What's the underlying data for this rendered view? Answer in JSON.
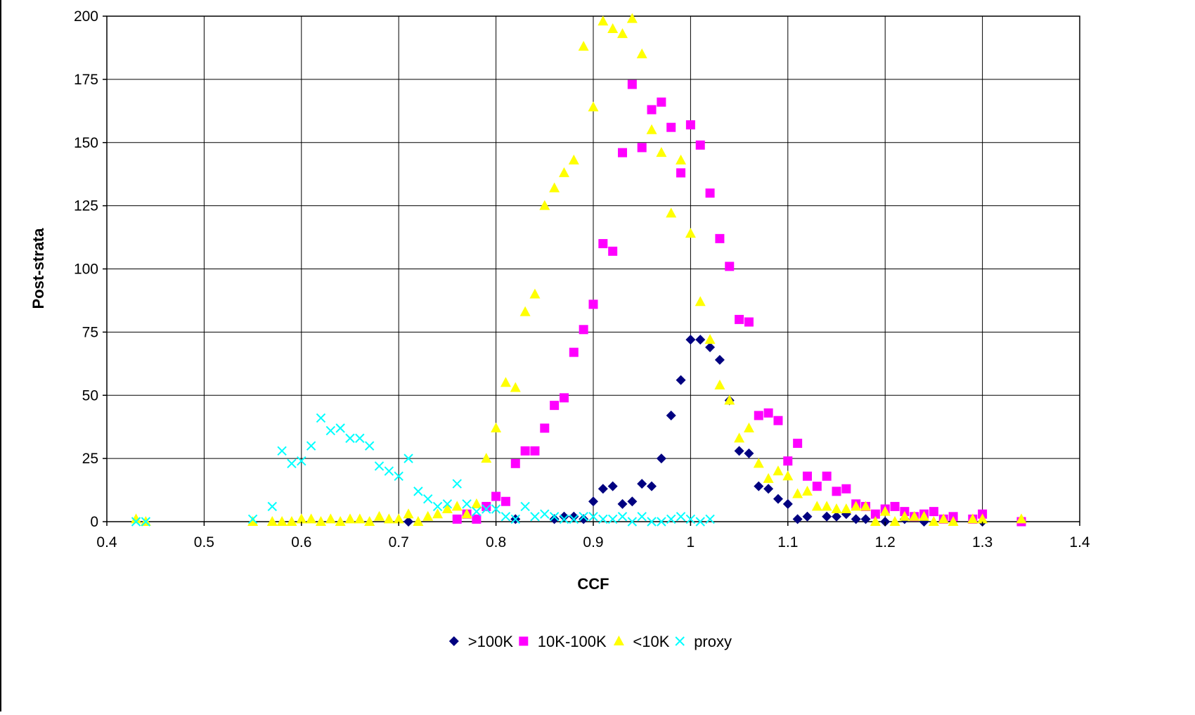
{
  "chart_data": {
    "type": "scatter",
    "title": "",
    "xlabel": "CCF",
    "ylabel": "Post-strata",
    "xlim": [
      0.4,
      1.4
    ],
    "ylim": [
      0,
      200
    ],
    "x_ticks": [
      0.4,
      0.5,
      0.6,
      0.7,
      0.8,
      0.9,
      1,
      1.1,
      1.2,
      1.3,
      1.4
    ],
    "x_tick_labels": [
      "0.4",
      "0.5",
      "0.6",
      "0.7",
      "0.8",
      "0.9",
      "1",
      "1.1",
      "1.2",
      "1.3",
      "1.4"
    ],
    "y_ticks": [
      0,
      25,
      50,
      75,
      100,
      125,
      150,
      175,
      200
    ],
    "y_tick_labels": [
      "0",
      "25",
      "50",
      "75",
      "100",
      "125",
      "150",
      "175",
      "200"
    ],
    "grid": true,
    "legend_position": "bottom",
    "series": [
      {
        "name": ">100K",
        "marker": "diamond",
        "color": "#000080",
        "points": [
          [
            0.71,
            0
          ],
          [
            0.82,
            1
          ],
          [
            0.86,
            1
          ],
          [
            0.87,
            2
          ],
          [
            0.88,
            2
          ],
          [
            0.89,
            1
          ],
          [
            0.9,
            8
          ],
          [
            0.91,
            13
          ],
          [
            0.92,
            14
          ],
          [
            0.93,
            7
          ],
          [
            0.94,
            8
          ],
          [
            0.95,
            15
          ],
          [
            0.96,
            14
          ],
          [
            0.97,
            25
          ],
          [
            0.98,
            42
          ],
          [
            0.99,
            56
          ],
          [
            1.0,
            72
          ],
          [
            1.01,
            72
          ],
          [
            1.02,
            69
          ],
          [
            1.03,
            64
          ],
          [
            1.04,
            48
          ],
          [
            1.05,
            28
          ],
          [
            1.06,
            27
          ],
          [
            1.07,
            14
          ],
          [
            1.08,
            13
          ],
          [
            1.09,
            9
          ],
          [
            1.1,
            7
          ],
          [
            1.11,
            1
          ],
          [
            1.12,
            2
          ],
          [
            1.14,
            2
          ],
          [
            1.15,
            2
          ],
          [
            1.16,
            3
          ],
          [
            1.17,
            1
          ],
          [
            1.18,
            1
          ],
          [
            1.2,
            0
          ],
          [
            1.22,
            1
          ],
          [
            1.24,
            0
          ],
          [
            1.3,
            0
          ]
        ]
      },
      {
        "name": "10K-100K",
        "marker": "square",
        "color": "#FF00FF",
        "points": [
          [
            0.76,
            1
          ],
          [
            0.77,
            3
          ],
          [
            0.78,
            1
          ],
          [
            0.79,
            6
          ],
          [
            0.8,
            10
          ],
          [
            0.81,
            8
          ],
          [
            0.82,
            23
          ],
          [
            0.83,
            28
          ],
          [
            0.84,
            28
          ],
          [
            0.85,
            37
          ],
          [
            0.86,
            46
          ],
          [
            0.87,
            49
          ],
          [
            0.88,
            67
          ],
          [
            0.89,
            76
          ],
          [
            0.9,
            86
          ],
          [
            0.91,
            110
          ],
          [
            0.92,
            107
          ],
          [
            0.93,
            146
          ],
          [
            0.94,
            173
          ],
          [
            0.95,
            148
          ],
          [
            0.96,
            163
          ],
          [
            0.97,
            166
          ],
          [
            0.98,
            156
          ],
          [
            0.99,
            138
          ],
          [
            1.0,
            157
          ],
          [
            1.01,
            149
          ],
          [
            1.02,
            130
          ],
          [
            1.03,
            112
          ],
          [
            1.04,
            101
          ],
          [
            1.05,
            80
          ],
          [
            1.06,
            79
          ],
          [
            1.07,
            42
          ],
          [
            1.08,
            43
          ],
          [
            1.09,
            40
          ],
          [
            1.1,
            24
          ],
          [
            1.11,
            31
          ],
          [
            1.12,
            18
          ],
          [
            1.13,
            14
          ],
          [
            1.14,
            18
          ],
          [
            1.15,
            12
          ],
          [
            1.16,
            13
          ],
          [
            1.17,
            7
          ],
          [
            1.18,
            6
          ],
          [
            1.19,
            3
          ],
          [
            1.2,
            5
          ],
          [
            1.21,
            6
          ],
          [
            1.22,
            4
          ],
          [
            1.23,
            2
          ],
          [
            1.24,
            3
          ],
          [
            1.25,
            4
          ],
          [
            1.26,
            1
          ],
          [
            1.27,
            2
          ],
          [
            1.29,
            1
          ],
          [
            1.3,
            3
          ],
          [
            1.34,
            0
          ]
        ]
      },
      {
        "name": "<10K",
        "marker": "triangle",
        "color": "#FFFF00",
        "points": [
          [
            0.43,
            1
          ],
          [
            0.44,
            0
          ],
          [
            0.55,
            0
          ],
          [
            0.57,
            0
          ],
          [
            0.58,
            0
          ],
          [
            0.59,
            0
          ],
          [
            0.6,
            1
          ],
          [
            0.61,
            1
          ],
          [
            0.62,
            0
          ],
          [
            0.63,
            1
          ],
          [
            0.64,
            0
          ],
          [
            0.65,
            1
          ],
          [
            0.66,
            1
          ],
          [
            0.67,
            0
          ],
          [
            0.68,
            2
          ],
          [
            0.69,
            1
          ],
          [
            0.7,
            1
          ],
          [
            0.71,
            3
          ],
          [
            0.72,
            0
          ],
          [
            0.73,
            2
          ],
          [
            0.74,
            3
          ],
          [
            0.75,
            5
          ],
          [
            0.76,
            6
          ],
          [
            0.77,
            3
          ],
          [
            0.78,
            7
          ],
          [
            0.79,
            25
          ],
          [
            0.8,
            37
          ],
          [
            0.81,
            55
          ],
          [
            0.82,
            53
          ],
          [
            0.83,
            83
          ],
          [
            0.84,
            90
          ],
          [
            0.85,
            125
          ],
          [
            0.86,
            132
          ],
          [
            0.87,
            138
          ],
          [
            0.88,
            143
          ],
          [
            0.89,
            188
          ],
          [
            0.9,
            164
          ],
          [
            0.91,
            198
          ],
          [
            0.92,
            195
          ],
          [
            0.93,
            193
          ],
          [
            0.94,
            199
          ],
          [
            0.95,
            185
          ],
          [
            0.96,
            155
          ],
          [
            0.97,
            146
          ],
          [
            0.98,
            122
          ],
          [
            0.99,
            143
          ],
          [
            1.0,
            114
          ],
          [
            1.01,
            87
          ],
          [
            1.02,
            72
          ],
          [
            1.03,
            54
          ],
          [
            1.04,
            48
          ],
          [
            1.05,
            33
          ],
          [
            1.06,
            37
          ],
          [
            1.07,
            23
          ],
          [
            1.08,
            17
          ],
          [
            1.09,
            20
          ],
          [
            1.1,
            18
          ],
          [
            1.11,
            11
          ],
          [
            1.12,
            12
          ],
          [
            1.13,
            6
          ],
          [
            1.14,
            6
          ],
          [
            1.15,
            5
          ],
          [
            1.16,
            5
          ],
          [
            1.17,
            6
          ],
          [
            1.18,
            6
          ],
          [
            1.19,
            0
          ],
          [
            1.2,
            4
          ],
          [
            1.21,
            0
          ],
          [
            1.22,
            2
          ],
          [
            1.23,
            2
          ],
          [
            1.24,
            2
          ],
          [
            1.25,
            0
          ],
          [
            1.26,
            1
          ],
          [
            1.27,
            0
          ],
          [
            1.29,
            1
          ],
          [
            1.3,
            1
          ],
          [
            1.34,
            1
          ]
        ]
      },
      {
        "name": "proxy",
        "marker": "x",
        "color": "#00FFFF",
        "points": [
          [
            0.43,
            0
          ],
          [
            0.44,
            0
          ],
          [
            0.55,
            1
          ],
          [
            0.57,
            6
          ],
          [
            0.58,
            28
          ],
          [
            0.59,
            23
          ],
          [
            0.6,
            24
          ],
          [
            0.61,
            30
          ],
          [
            0.62,
            41
          ],
          [
            0.63,
            36
          ],
          [
            0.64,
            37
          ],
          [
            0.65,
            33
          ],
          [
            0.66,
            33
          ],
          [
            0.67,
            30
          ],
          [
            0.68,
            22
          ],
          [
            0.69,
            20
          ],
          [
            0.7,
            18
          ],
          [
            0.71,
            25
          ],
          [
            0.72,
            12
          ],
          [
            0.73,
            9
          ],
          [
            0.74,
            6
          ],
          [
            0.75,
            7
          ],
          [
            0.76,
            15
          ],
          [
            0.77,
            7
          ],
          [
            0.78,
            4
          ],
          [
            0.79,
            5
          ],
          [
            0.8,
            5
          ],
          [
            0.81,
            2
          ],
          [
            0.82,
            1
          ],
          [
            0.83,
            6
          ],
          [
            0.84,
            2
          ],
          [
            0.85,
            3
          ],
          [
            0.86,
            2
          ],
          [
            0.87,
            1
          ],
          [
            0.88,
            1
          ],
          [
            0.89,
            2
          ],
          [
            0.9,
            2
          ],
          [
            0.91,
            1
          ],
          [
            0.92,
            1
          ],
          [
            0.93,
            2
          ],
          [
            0.94,
            0
          ],
          [
            0.95,
            2
          ],
          [
            0.96,
            0
          ],
          [
            0.97,
            0
          ],
          [
            0.98,
            1
          ],
          [
            0.99,
            2
          ],
          [
            1.0,
            1
          ],
          [
            1.01,
            0
          ],
          [
            1.02,
            1
          ]
        ]
      }
    ]
  }
}
